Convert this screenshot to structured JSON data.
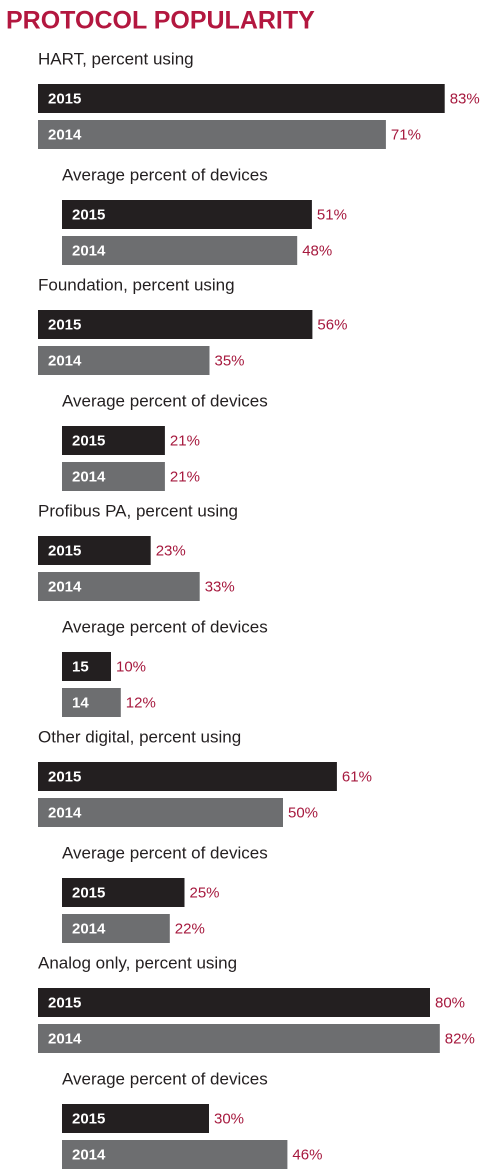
{
  "chart_data": {
    "type": "bar",
    "orientation": "horizontal",
    "title": "PROTOCOL POPULARITY",
    "colors": [
      "#231f20",
      "#6d6e70"
    ],
    "panels": [
      {
        "label": "HART, percent using",
        "categories": [
          "2015",
          "2014"
        ],
        "values": [
          83,
          71
        ],
        "value_labels": [
          "83%",
          "71%"
        ]
      },
      {
        "label": "Average percent of devices",
        "categories": [
          "2015",
          "2014"
        ],
        "values": [
          51,
          48
        ],
        "value_labels": [
          "51%",
          "48%"
        ]
      },
      {
        "label": "Foundation, percent using",
        "categories": [
          "2015",
          "2014"
        ],
        "values": [
          56,
          35
        ],
        "value_labels": [
          "56%",
          "35%"
        ]
      },
      {
        "label": "Average percent of devices",
        "categories": [
          "2015",
          "2014"
        ],
        "values": [
          21,
          21
        ],
        "value_labels": [
          "21%",
          "21%"
        ]
      },
      {
        "label": "Profibus PA, percent using",
        "categories": [
          "2015",
          "2014"
        ],
        "values": [
          23,
          33
        ],
        "value_labels": [
          "23%",
          "33%"
        ]
      },
      {
        "label": "Average percent of devices",
        "categories": [
          "15",
          "14"
        ],
        "values": [
          10,
          12
        ],
        "value_labels": [
          "10%",
          "12%"
        ]
      },
      {
        "label": "Other digital, percent using",
        "categories": [
          "2015",
          "2014"
        ],
        "values": [
          61,
          50
        ],
        "value_labels": [
          "61%",
          "50%"
        ]
      },
      {
        "label": "Average percent of devices",
        "categories": [
          "2015",
          "2014"
        ],
        "values": [
          25,
          22
        ],
        "value_labels": [
          "25%",
          "22%"
        ]
      },
      {
        "label": "Analog only, percent using",
        "categories": [
          "2015",
          "2014"
        ],
        "values": [
          80,
          82
        ],
        "value_labels": [
          "80%",
          "82%"
        ]
      },
      {
        "label": "Average percent of devices",
        "categories": [
          "2015",
          "2014"
        ],
        "values": [
          30,
          46
        ],
        "value_labels": [
          "30%",
          "46%"
        ]
      }
    ]
  }
}
